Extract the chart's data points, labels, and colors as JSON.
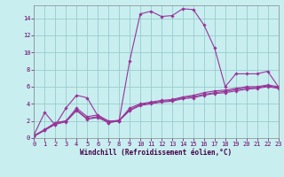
{
  "xlabel": "Windchill (Refroidissement éolien,°C)",
  "background_color": "#c8eef0",
  "line_color": "#993399",
  "grid_color": "#99cccc",
  "hours": [
    0,
    1,
    2,
    3,
    4,
    5,
    6,
    7,
    8,
    9,
    10,
    11,
    12,
    13,
    14,
    15,
    16,
    17,
    18,
    19,
    20,
    21,
    22,
    23
  ],
  "series": [
    [
      0.4,
      3.0,
      1.5,
      3.5,
      5.0,
      4.7,
      2.6,
      1.8,
      2.0,
      9.0,
      14.5,
      14.8,
      14.2,
      14.3,
      15.1,
      15.0,
      13.2,
      10.5,
      6.0,
      7.5,
      7.5,
      7.5,
      7.8,
      6.0
    ],
    [
      0.3,
      1.0,
      1.8,
      2.0,
      3.5,
      2.5,
      2.7,
      2.0,
      2.0,
      3.5,
      4.0,
      4.2,
      4.4,
      4.5,
      4.8,
      5.0,
      5.3,
      5.5,
      5.6,
      5.8,
      6.0,
      6.0,
      6.2,
      6.0
    ],
    [
      0.2,
      0.9,
      1.6,
      1.9,
      3.2,
      2.2,
      2.4,
      1.8,
      2.0,
      3.2,
      3.8,
      4.0,
      4.2,
      4.3,
      4.6,
      4.7,
      5.0,
      5.2,
      5.3,
      5.5,
      5.7,
      5.8,
      6.0,
      5.8
    ],
    [
      0.25,
      0.95,
      1.7,
      2.0,
      3.3,
      2.3,
      2.5,
      1.9,
      2.1,
      3.3,
      3.9,
      4.1,
      4.3,
      4.4,
      4.7,
      4.85,
      5.1,
      5.3,
      5.45,
      5.65,
      5.85,
      5.9,
      6.1,
      5.9
    ]
  ],
  "xlim": [
    0,
    23
  ],
  "ylim": [
    0,
    15.5
  ],
  "yticks": [
    0,
    2,
    4,
    6,
    8,
    10,
    12,
    14
  ],
  "xticks": [
    0,
    1,
    2,
    3,
    4,
    5,
    6,
    7,
    8,
    9,
    10,
    11,
    12,
    13,
    14,
    15,
    16,
    17,
    18,
    19,
    20,
    21,
    22,
    23
  ],
  "marker": "D",
  "markersize": 1.8,
  "linewidth": 0.8,
  "tick_fontsize": 5.0,
  "label_fontsize": 5.5
}
